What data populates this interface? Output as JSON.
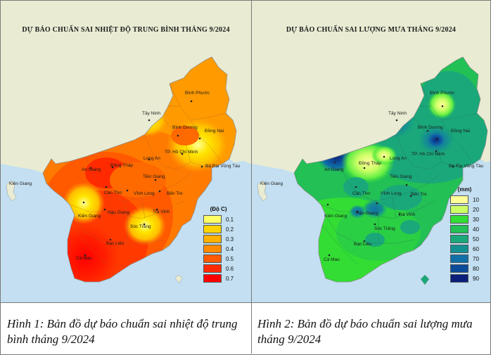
{
  "map1": {
    "title": "DỰ BÁO CHUẨN SAI NHIỆT ĐỘ TRUNG BÌNH THÁNG 9/2024",
    "legend_title": "(Độ C)",
    "legend": [
      {
        "label": "0.1",
        "color": "#ffff66"
      },
      {
        "label": "0.2",
        "color": "#ffd400"
      },
      {
        "label": "0.3",
        "color": "#ffb000"
      },
      {
        "label": "0.4",
        "color": "#ff8a00"
      },
      {
        "label": "0.5",
        "color": "#ff5a00"
      },
      {
        "label": "0.6",
        "color": "#ff2a00"
      },
      {
        "label": "0.7",
        "color": "#ff0000"
      }
    ],
    "places": {
      "binh_phuoc": "Bình Phước",
      "tay_ninh": "Tây Ninh",
      "binh_duong": "Bình Dương",
      "dong_nai": "Đồng Nai",
      "tp_hcm": "TP. Hồ Chí Minh",
      "ba_ria": "Bà Rịa Vũng Tàu",
      "long_an": "Long An",
      "dong_thap": "Đồng Tháp",
      "an_giang": "An Giang",
      "tien_giang": "Tiền Giang",
      "can_tho": "Cần Thơ",
      "vinh_long": "Vĩnh Long",
      "ben_tre": "Bến Tre",
      "kien_giang": "Kiên Giang",
      "kien_giang_island": "Kiên Giang",
      "hau_giang": "Hậu Giang",
      "tra_vinh": "Trà Vinh",
      "soc_trang": "Sóc Trăng",
      "bac_lieu": "Bạc Liêu",
      "ca_mau": "Cà Mau"
    },
    "caption": "Hình 1: Bản đồ dự báo chuẩn sai nhiệt độ trung bình tháng 9/2024"
  },
  "map2": {
    "title": "DỰ BÁO CHUẨN SAI LƯỢNG MƯA THÁNG 9/2024",
    "legend_title": "(mm)",
    "legend": [
      {
        "label": "10",
        "color": "#ffff99"
      },
      {
        "label": "20",
        "color": "#ccff66"
      },
      {
        "label": "30",
        "color": "#33dd33"
      },
      {
        "label": "40",
        "color": "#22c055"
      },
      {
        "label": "50",
        "color": "#1aa87a"
      },
      {
        "label": "60",
        "color": "#159090"
      },
      {
        "label": "70",
        "color": "#1170a8"
      },
      {
        "label": "80",
        "color": "#0c4a9a"
      },
      {
        "label": "90",
        "color": "#0a1e7a"
      }
    ],
    "places": {
      "binh_phuoc": "Bình Phước",
      "tay_ninh": "Tây Ninh",
      "binh_duong": "Bình Dương",
      "dong_nai": "Đồng Nai",
      "tp_hcm": "TP. Hồ Chí Minh",
      "ba_ria": "Bà Rịa Vũng Tàu",
      "long_an": "Long An",
      "dong_thap": "Đồng Tháp",
      "an_giang": "An Giang",
      "tien_giang": "Tiền Giang",
      "can_tho": "Cần Thơ",
      "vinh_long": "Vĩnh Long",
      "ben_tre": "Bến Tre",
      "kien_giang": "Kiên Giang",
      "kien_giang_island": "Kiên Giang",
      "hau_giang": "Hậu Giang",
      "tra_vinh": "Trà Vinh",
      "soc_trang": "Sóc Trăng",
      "bac_lieu": "Bạc Liêu",
      "ca_mau": "Cà Mau"
    },
    "caption": "Hình 2: Bản đồ dự báo chuẩn sai lượng mưa tháng 9/2024"
  },
  "colors": {
    "land": "#e9ecd3",
    "sea": "#c3dff1"
  }
}
